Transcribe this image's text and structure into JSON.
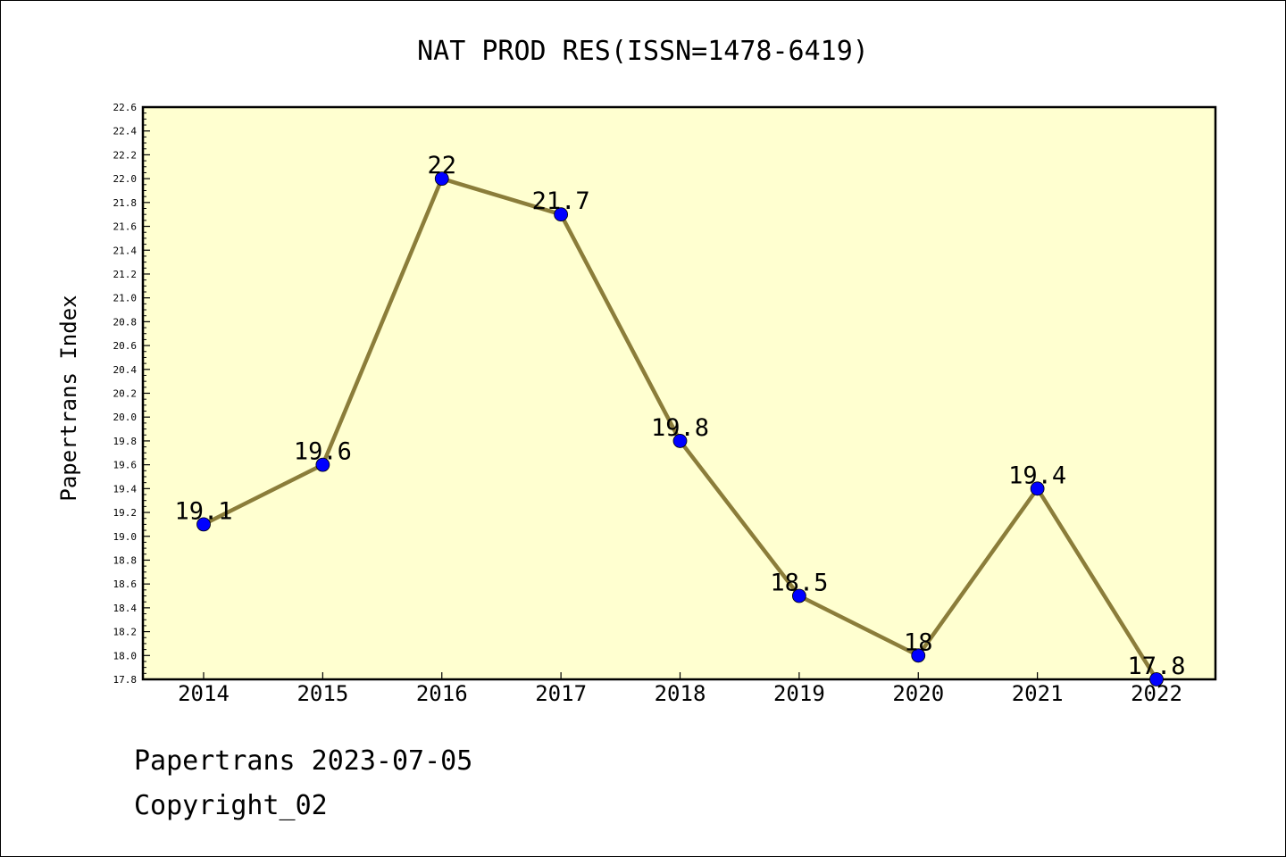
{
  "chart_data": {
    "type": "line",
    "title": "NAT PROD RES(ISSN=1478-6419)",
    "ylabel": "Papertrans Index",
    "xlabel": "",
    "categories": [
      "2014",
      "2015",
      "2016",
      "2017",
      "2018",
      "2019",
      "2020",
      "2021",
      "2022"
    ],
    "series": [
      {
        "values": [
          19.1,
          19.6,
          22,
          21.7,
          19.8,
          18.5,
          18,
          19.4,
          17.8
        ],
        "labels": [
          "19.1",
          "19.6",
          "22",
          "21.7",
          "19.8",
          "18.5",
          "18",
          "19.4",
          "17.8"
        ],
        "line_color": "#8b7d3a",
        "marker_color": "#0000ff"
      }
    ],
    "ylim": [
      17.8,
      22.6
    ],
    "ytick_step": 0.2,
    "grid": false,
    "plot_background": "#ffffd0"
  },
  "footer": {
    "line1": "Papertrans 2023-07-05",
    "line2": "Copyright_02"
  }
}
